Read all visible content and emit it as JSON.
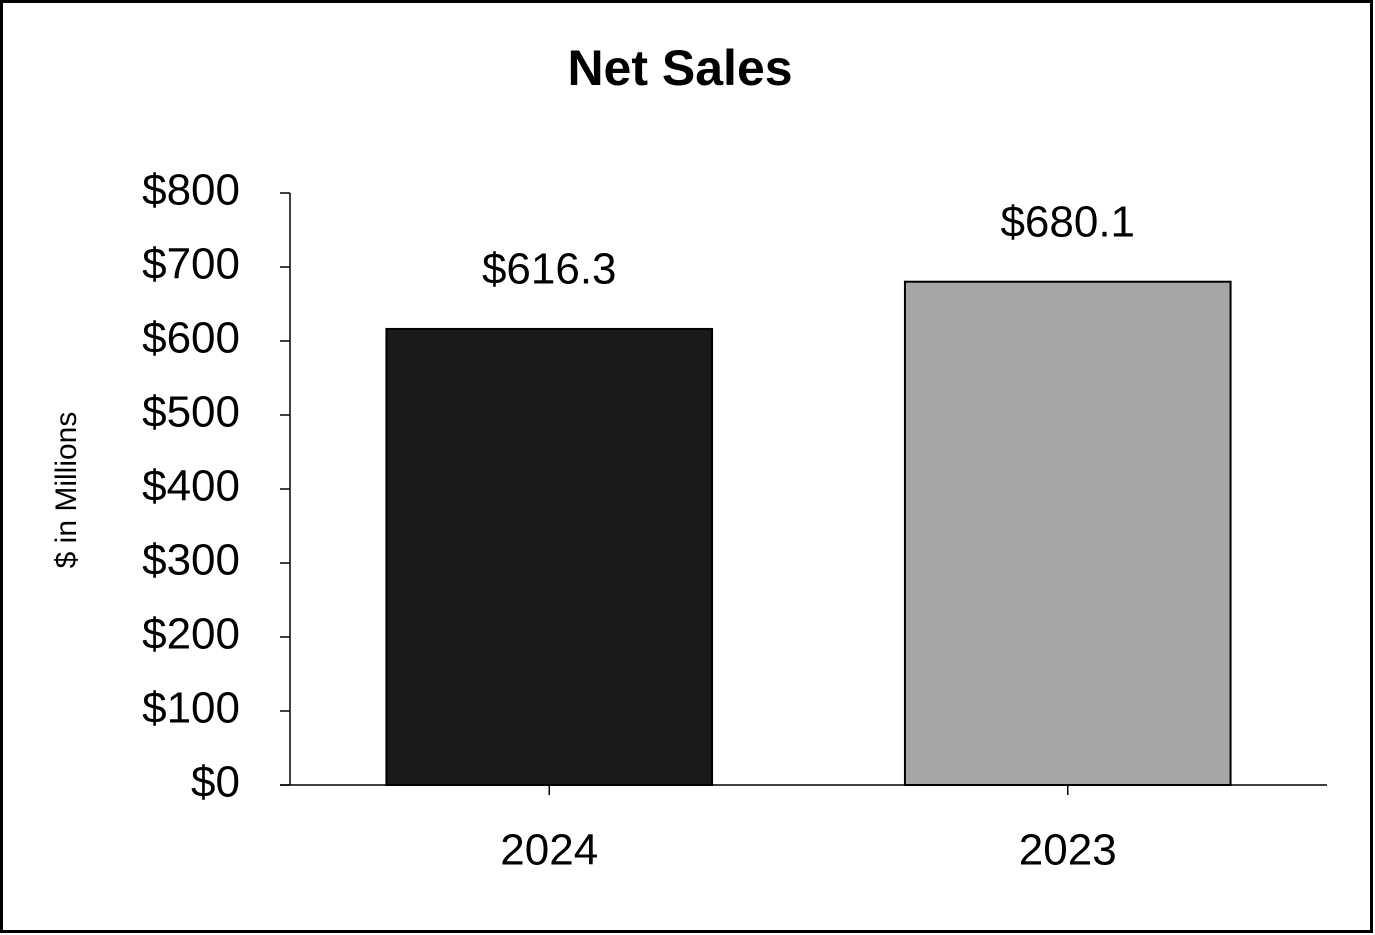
{
  "chart_data": {
    "type": "bar",
    "title": "Net Sales",
    "y_label": "$ in Millions",
    "categories": [
      "2024",
      "2023"
    ],
    "values": [
      616.3,
      680.1
    ],
    "value_labels": [
      "$616.3",
      "$680.1"
    ],
    "colors": [
      "#1a1a1a",
      "#a6a6a6"
    ],
    "ylim": [
      0,
      800
    ],
    "yticks": [
      {
        "value": 0,
        "label": "$0"
      },
      {
        "value": 100,
        "label": "$100"
      },
      {
        "value": 200,
        "label": "$200"
      },
      {
        "value": 300,
        "label": "$300"
      },
      {
        "value": 400,
        "label": "$400"
      },
      {
        "value": 500,
        "label": "$500"
      },
      {
        "value": 600,
        "label": "$600"
      },
      {
        "value": 700,
        "label": "$700"
      },
      {
        "value": 800,
        "label": "$800"
      }
    ],
    "grid": false
  }
}
